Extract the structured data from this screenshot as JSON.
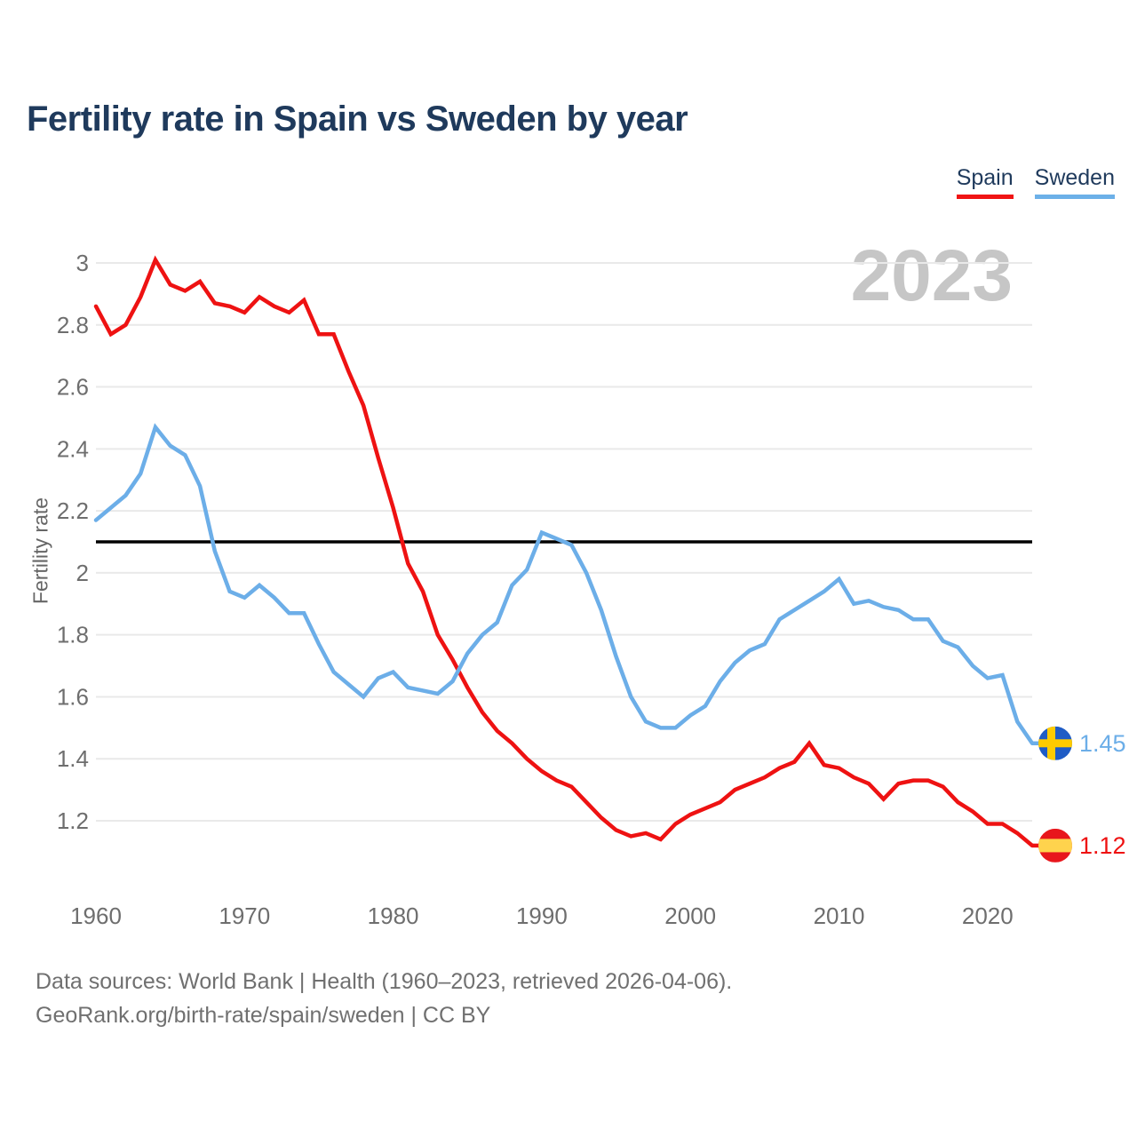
{
  "header": {
    "title": "Fertility rate in Spain vs Sweden by year"
  },
  "legend": {
    "items": [
      {
        "label": "Spain",
        "color": "#f01414"
      },
      {
        "label": "Sweden",
        "color": "#6cb0e8"
      }
    ]
  },
  "watermark": "2023",
  "chart_data": {
    "type": "line",
    "title": "Fertility rate in Spain vs Sweden by year",
    "xlabel": "",
    "ylabel": "Fertility rate",
    "grid": true,
    "legend_position": "top-right",
    "x_range": [
      1960,
      2023
    ],
    "ylim": [
      1.05,
      3.05
    ],
    "x_ticks": [
      1960,
      1970,
      1980,
      1990,
      2000,
      2010,
      2020
    ],
    "y_ticks": [
      3,
      2.8,
      2.6,
      2.4,
      2.2,
      2,
      1.8,
      1.6,
      1.4,
      1.2
    ],
    "reference_line": {
      "value": 2.1,
      "color": "#000000"
    },
    "x": [
      1960,
      1961,
      1962,
      1963,
      1964,
      1965,
      1966,
      1967,
      1968,
      1969,
      1970,
      1971,
      1972,
      1973,
      1974,
      1975,
      1976,
      1977,
      1978,
      1979,
      1980,
      1981,
      1982,
      1983,
      1984,
      1985,
      1986,
      1987,
      1988,
      1989,
      1990,
      1991,
      1992,
      1993,
      1994,
      1995,
      1996,
      1997,
      1998,
      1999,
      2000,
      2001,
      2002,
      2003,
      2004,
      2005,
      2006,
      2007,
      2008,
      2009,
      2010,
      2011,
      2012,
      2013,
      2014,
      2015,
      2016,
      2017,
      2018,
      2019,
      2020,
      2021,
      2022,
      2023
    ],
    "series": [
      {
        "name": "Spain",
        "color": "#ee1212",
        "end_label": "1.12",
        "flag": {
          "type": "spain",
          "base": "#e8161c",
          "band": "#ffd34d"
        },
        "values": [
          2.86,
          2.77,
          2.8,
          2.89,
          3.01,
          2.93,
          2.91,
          2.94,
          2.87,
          2.86,
          2.84,
          2.89,
          2.86,
          2.84,
          2.88,
          2.77,
          2.77,
          2.65,
          2.54,
          2.37,
          2.21,
          2.03,
          1.94,
          1.8,
          1.72,
          1.63,
          1.55,
          1.49,
          1.45,
          1.4,
          1.36,
          1.33,
          1.31,
          1.26,
          1.21,
          1.17,
          1.15,
          1.16,
          1.14,
          1.19,
          1.22,
          1.24,
          1.26,
          1.3,
          1.32,
          1.34,
          1.37,
          1.39,
          1.45,
          1.38,
          1.37,
          1.34,
          1.32,
          1.27,
          1.32,
          1.33,
          1.33,
          1.31,
          1.26,
          1.23,
          1.19,
          1.19,
          1.16,
          1.12
        ]
      },
      {
        "name": "Sweden",
        "color": "#6caee8",
        "end_label": "1.45",
        "flag": {
          "type": "sweden",
          "base": "#1f5cc5",
          "band": "#fecb00"
        },
        "values": [
          2.17,
          2.21,
          2.25,
          2.32,
          2.47,
          2.41,
          2.38,
          2.28,
          2.07,
          1.94,
          1.92,
          1.96,
          1.92,
          1.87,
          1.87,
          1.77,
          1.68,
          1.64,
          1.6,
          1.66,
          1.68,
          1.63,
          1.62,
          1.61,
          1.65,
          1.74,
          1.8,
          1.84,
          1.96,
          2.01,
          2.13,
          2.11,
          2.09,
          2.0,
          1.88,
          1.73,
          1.6,
          1.52,
          1.5,
          1.5,
          1.54,
          1.57,
          1.65,
          1.71,
          1.75,
          1.77,
          1.85,
          1.88,
          1.91,
          1.94,
          1.98,
          1.9,
          1.91,
          1.89,
          1.88,
          1.85,
          1.85,
          1.78,
          1.76,
          1.7,
          1.66,
          1.67,
          1.52,
          1.45
        ]
      }
    ]
  },
  "footer": {
    "line1": "Data sources: World Bank | Health (1960–2023, retrieved 2026-04-06).",
    "line2": "GeoRank.org/birth-rate/spain/sweden | CC BY"
  }
}
